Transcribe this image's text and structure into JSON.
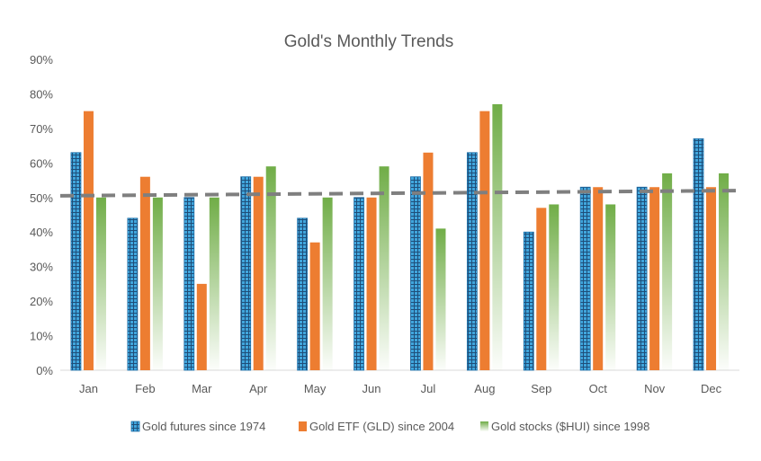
{
  "chart_data": {
    "type": "bar",
    "title": "Gold's Monthly Trends",
    "categories": [
      "Jan",
      "Feb",
      "Mar",
      "Apr",
      "May",
      "Jun",
      "Jul",
      "Aug",
      "Sep",
      "Oct",
      "Nov",
      "Dec"
    ],
    "series": [
      {
        "name": "Gold futures since 1974",
        "values": [
          63,
          44,
          50,
          56,
          44,
          50,
          56,
          63,
          40,
          53,
          53,
          67
        ],
        "color": "#41A6DD",
        "pattern": "grid"
      },
      {
        "name": "Gold ETF (GLD) since 2004",
        "values": [
          75,
          56,
          25,
          56,
          37,
          50,
          63,
          75,
          47,
          53,
          53,
          53
        ],
        "color": "#ED7D31",
        "pattern": "solid"
      },
      {
        "name": "Gold stocks ($HUI) since 1998",
        "values": [
          50,
          50,
          50,
          59,
          50,
          59,
          41,
          77,
          48,
          48,
          57,
          57
        ],
        "color": "#70AD47",
        "pattern": "gradient"
      }
    ],
    "trendline": {
      "start": 50.5,
      "end": 52.0,
      "color": "#7F7F7F",
      "style": "dashed"
    },
    "ylim": [
      0,
      90
    ],
    "yticks": [
      "0%",
      "10%",
      "20%",
      "30%",
      "40%",
      "50%",
      "60%",
      "70%",
      "80%",
      "90%"
    ],
    "xlabel": "",
    "ylabel": "",
    "grid": false,
    "legend": "bottom"
  }
}
